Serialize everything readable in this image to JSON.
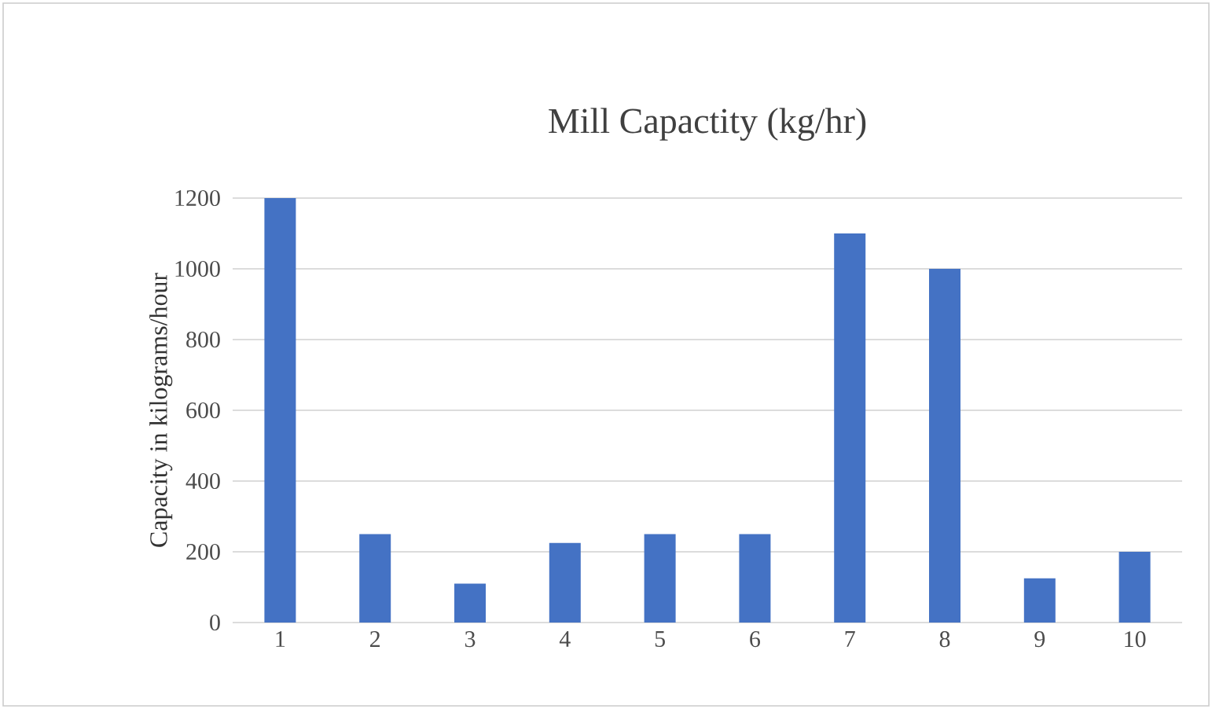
{
  "chart_data": {
    "type": "bar",
    "title": "Mill Capactity (kg/hr)",
    "ylabel": "Capacity in kilograms/hour",
    "categories": [
      "1",
      "2",
      "3",
      "4",
      "5",
      "6",
      "7",
      "8",
      "9",
      "10"
    ],
    "values": [
      1200,
      250,
      110,
      225,
      250,
      250,
      1100,
      1000,
      125,
      200
    ],
    "color": "#4472c4",
    "ylim": [
      0,
      1200
    ],
    "yticks": [
      0,
      200,
      400,
      600,
      800,
      1000,
      1200
    ],
    "grid": "y"
  }
}
